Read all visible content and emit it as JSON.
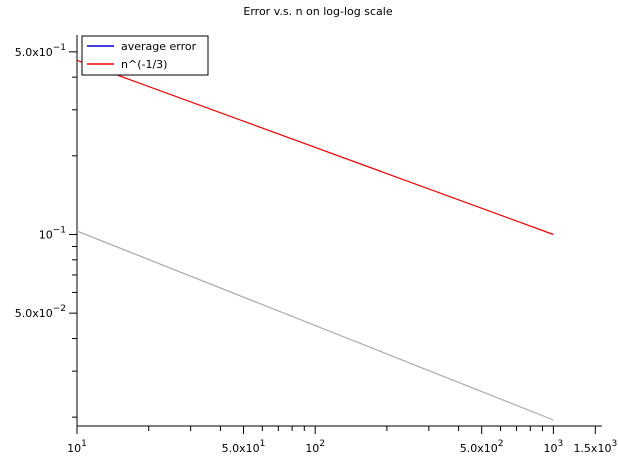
{
  "chart_data": {
    "type": "line",
    "title": "Error v.s. n on log-log scale",
    "xlabel": "",
    "ylabel": "",
    "xscale": "log",
    "yscale": "log",
    "xlim": [
      10,
      1600
    ],
    "ylim": [
      0.0185,
      0.58
    ],
    "grid": false,
    "legend_position": "top-left",
    "x_ticks": {
      "major": [
        {
          "value": 10,
          "mant": "10",
          "exp": "1"
        },
        {
          "value": 50,
          "mant": "5.0x10",
          "exp": "1"
        },
        {
          "value": 100,
          "mant": "10",
          "exp": "2"
        },
        {
          "value": 500,
          "mant": "5.0x10",
          "exp": "2"
        },
        {
          "value": 1000,
          "mant": "10",
          "exp": "3"
        },
        {
          "value": 1500,
          "mant": "1.5x10",
          "exp": "3"
        }
      ],
      "minor": [
        20,
        30,
        40,
        60,
        70,
        80,
        90,
        200,
        300,
        400,
        600,
        700,
        800,
        900
      ]
    },
    "y_ticks": {
      "major": [
        {
          "value": 0.5,
          "mant": "5.0x10",
          "exp": "−1"
        },
        {
          "value": 0.1,
          "mant": "10",
          "exp": "−1"
        },
        {
          "value": 0.05,
          "mant": "5.0x10",
          "exp": "−2"
        }
      ],
      "minor": [
        0.02,
        0.03,
        0.04,
        0.06,
        0.07,
        0.08,
        0.09,
        0.2,
        0.3,
        0.4
      ]
    },
    "series": [
      {
        "name": "average error",
        "color": "#0000cc",
        "x": [
          10,
          1000
        ],
        "y": [
          0.103,
          0.0195
        ],
        "display_color": "#aaaaaa"
      },
      {
        "name": "n^(-1/3)",
        "color": "#ee0000",
        "x": [
          10,
          1000
        ],
        "y": [
          0.464,
          0.1
        ]
      }
    ]
  }
}
